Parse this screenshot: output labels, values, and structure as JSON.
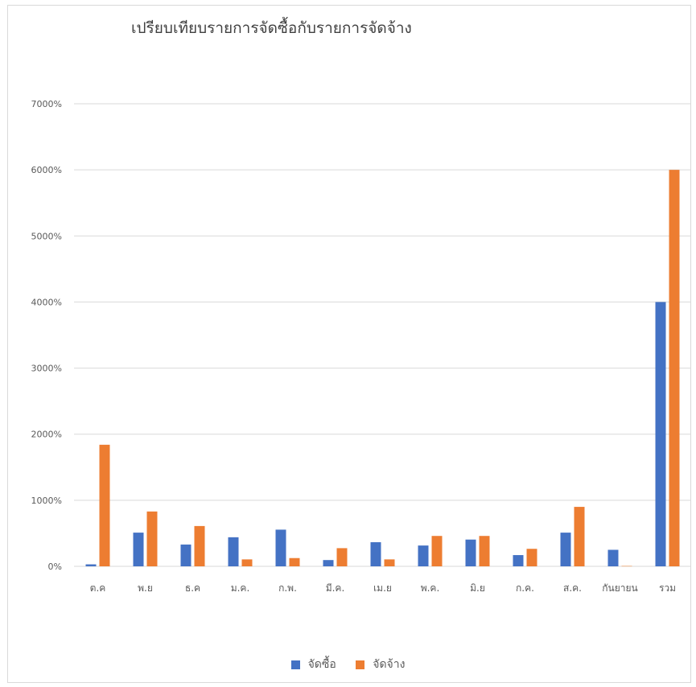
{
  "chart_data": {
    "type": "bar",
    "title": "เปรียบเทียบรายการจัดซื้อกับรายการจัดจ้าง",
    "categories": [
      "ต.ค",
      "พ.ย",
      "ธ.ค",
      "ม.ค.",
      "ก.พ.",
      "มี.ค.",
      "เม.ย",
      "พ.ค.",
      "มิ.ย",
      "ก.ค.",
      "ส.ค.",
      "กันยายน",
      "รวม"
    ],
    "series": [
      {
        "name": "จัดซื้อ",
        "color": "#4472c4",
        "values": [
          30,
          510,
          330,
          440,
          555,
          95,
          365,
          315,
          405,
          170,
          510,
          250,
          4000
        ]
      },
      {
        "name": "จัดจ้าง",
        "color": "#ed7d31",
        "values": [
          1840,
          830,
          610,
          105,
          125,
          275,
          105,
          460,
          460,
          265,
          900,
          5,
          6000
        ]
      }
    ],
    "y_ticks": [
      "0%",
      "1000%",
      "2000%",
      "3000%",
      "4000%",
      "5000%",
      "6000%",
      "7000%"
    ],
    "ylim": [
      0,
      7000
    ],
    "grid": true,
    "legend_position": "bottom"
  }
}
